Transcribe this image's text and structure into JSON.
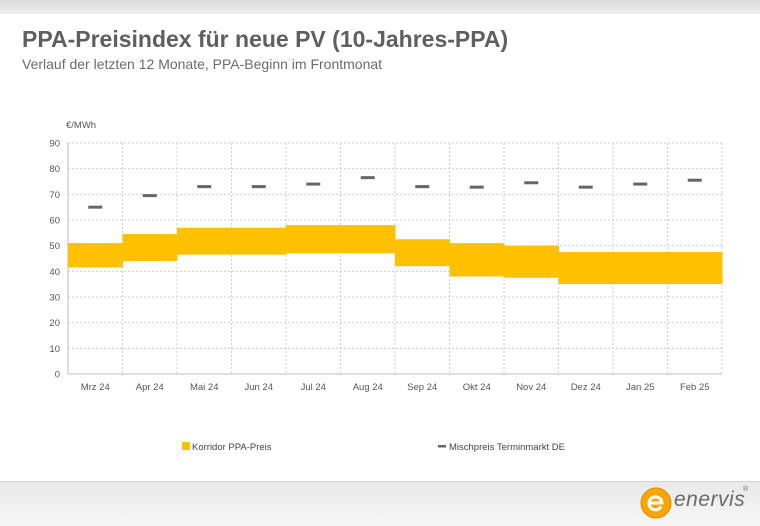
{
  "title": "PPA-Preisindex für neue PV (10-Jahres-PPA)",
  "subtitle": "Verlauf der letzten 12 Monate, PPA-Beginn im Frontmonat",
  "logo": {
    "text": "enervis",
    "reg": "®",
    "color": "#f7a600"
  },
  "colors": {
    "corridor": "#ffc000",
    "mix": "#666666",
    "grid": "#cfcfcf",
    "axis": "#bdbdbd"
  },
  "chart_data": {
    "type": "bar",
    "ylabel": "€/MWh",
    "xlabel": "",
    "ylim": [
      0,
      90
    ],
    "yticks": [
      0,
      10,
      20,
      30,
      40,
      50,
      60,
      70,
      80,
      90
    ],
    "grid": true,
    "legend_position": "bottom",
    "categories": [
      "Mrz 24",
      "Apr 24",
      "Mai 24",
      "Jun 24",
      "Jul 24",
      "Aug 24",
      "Sep 24",
      "Okt 24",
      "Nov 24",
      "Dez 24",
      "Jan 25",
      "Feb 25"
    ],
    "series": [
      {
        "name": "Korridor PPA-Preis",
        "kind": "range-bar",
        "low": [
          41.5,
          44,
          46.5,
          46.5,
          47,
          47,
          42,
          38,
          37.5,
          35,
          35,
          35
        ],
        "high": [
          51,
          54.5,
          57,
          57,
          58,
          58,
          52.5,
          51,
          50,
          47.5,
          47.5,
          47.5
        ]
      },
      {
        "name": "Mischpreis Terminmarkt DE",
        "kind": "marker",
        "values": [
          65,
          69.5,
          73,
          73,
          74,
          76.5,
          73,
          72.8,
          74.5,
          72.8,
          74,
          75.5
        ]
      }
    ]
  }
}
